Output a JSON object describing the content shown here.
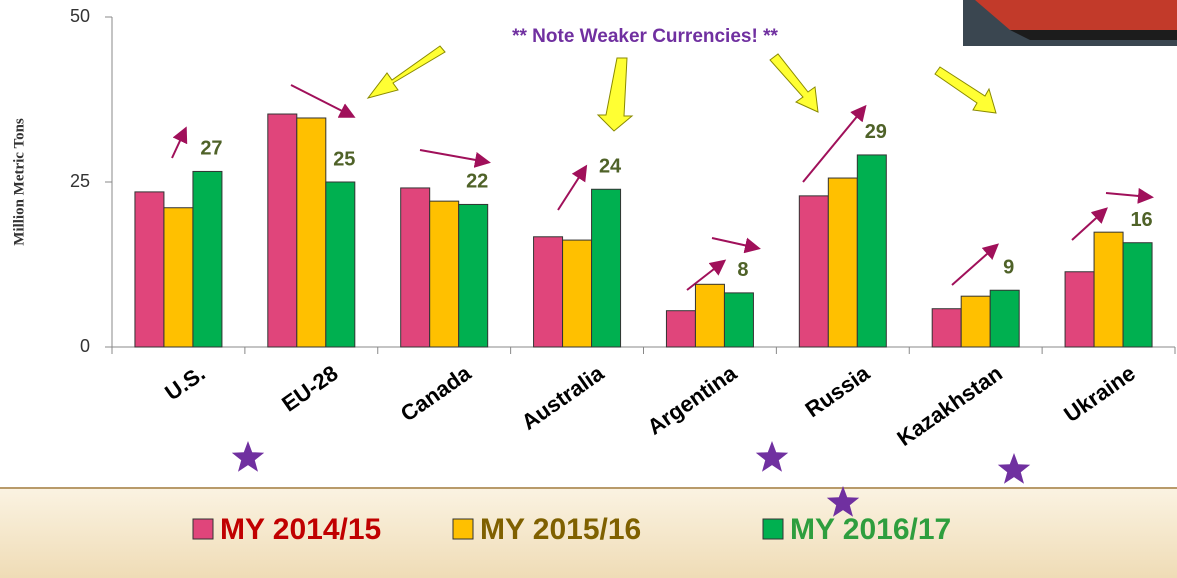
{
  "chart_data": {
    "type": "bar",
    "y_label": "Million Metric Tons",
    "annotation": "** Note Weaker Currencies! **",
    "categories": [
      "U.S.",
      "EU-28",
      "Canada",
      "Australia",
      "Argentina",
      "Russia",
      "Kazakhstan",
      "Ukraine"
    ],
    "series": [
      {
        "name": "MY 2014/15",
        "color": "#e0457b",
        "values": [
          23.5,
          35.3,
          24.1,
          16.7,
          5.5,
          22.9,
          5.8,
          11.4
        ]
      },
      {
        "name": "MY 2015/16",
        "color": "#ffc000",
        "values": [
          21.1,
          34.7,
          22.1,
          16.2,
          9.5,
          25.6,
          7.7,
          17.4
        ]
      },
      {
        "name": "MY 2016/17",
        "color": "#00b050",
        "values": [
          26.6,
          25.0,
          21.6,
          23.9,
          8.2,
          29.1,
          8.6,
          15.8
        ],
        "value_labels": [
          "27",
          "25",
          "22",
          "24",
          "8",
          "29",
          "9",
          "16"
        ]
      }
    ],
    "ylim": [
      0,
      50
    ],
    "yticks": [
      0,
      25,
      50
    ],
    "grid": false
  }
}
